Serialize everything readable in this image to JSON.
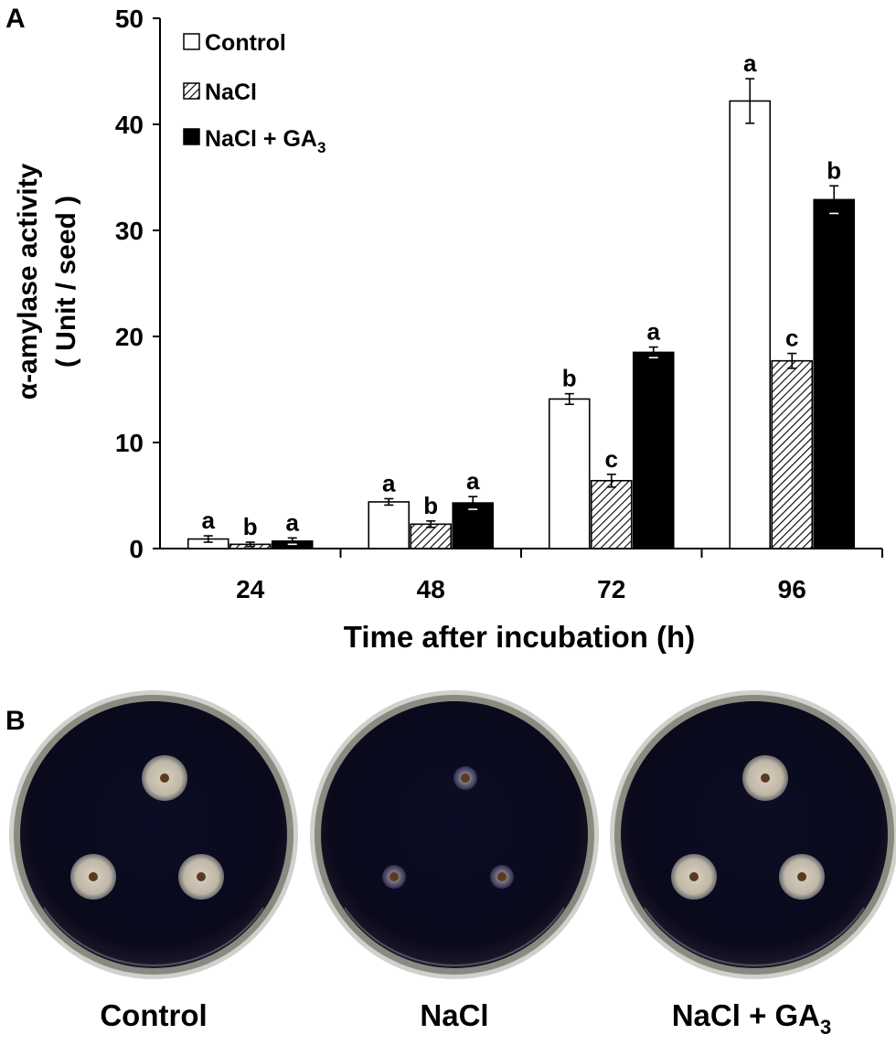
{
  "panel_a_label": "A",
  "panel_b_label": "B",
  "chart_data": {
    "type": "bar",
    "xlabel": "Time after incubation (h)",
    "ylabel_line1": "α-amylase activity",
    "ylabel_line2": "( Unit / seed )",
    "categories": [
      "24",
      "48",
      "72",
      "96"
    ],
    "ylim": [
      0,
      50
    ],
    "yticks": [
      0,
      10,
      20,
      30,
      40,
      50
    ],
    "legend_position": "top-left",
    "grid": false,
    "series": [
      {
        "name": "Control",
        "fill": "white",
        "values": [
          0.9,
          4.4,
          14.1,
          42.2
        ],
        "errors": [
          0.3,
          0.3,
          0.5,
          2.1
        ],
        "letters": [
          "a",
          "a",
          "b",
          "a"
        ]
      },
      {
        "name": "NaCl",
        "fill": "hatch",
        "values": [
          0.4,
          2.3,
          6.4,
          17.7
        ],
        "errors": [
          0.2,
          0.3,
          0.6,
          0.7
        ],
        "letters": [
          "b",
          "b",
          "c",
          "c"
        ]
      },
      {
        "name": "NaCl + GA",
        "name_subscript": "3",
        "fill": "black",
        "values": [
          0.7,
          4.3,
          18.5,
          32.9
        ],
        "errors": [
          0.3,
          0.6,
          0.5,
          1.3
        ],
        "letters": [
          "a",
          "a",
          "a",
          "b"
        ]
      }
    ]
  },
  "plates": [
    {
      "label": "Control",
      "halo_size": "large",
      "wells": 3
    },
    {
      "label": "NaCl",
      "halo_size": "small",
      "wells": 3
    },
    {
      "label": "NaCl + GA",
      "label_subscript": "3",
      "halo_size": "large",
      "wells": 3
    }
  ],
  "colors": {
    "plate_medium": "#0a0a22",
    "halo": "#c8c0b0",
    "well": "#5a3a20",
    "plate_rim": "#8a8a80"
  }
}
